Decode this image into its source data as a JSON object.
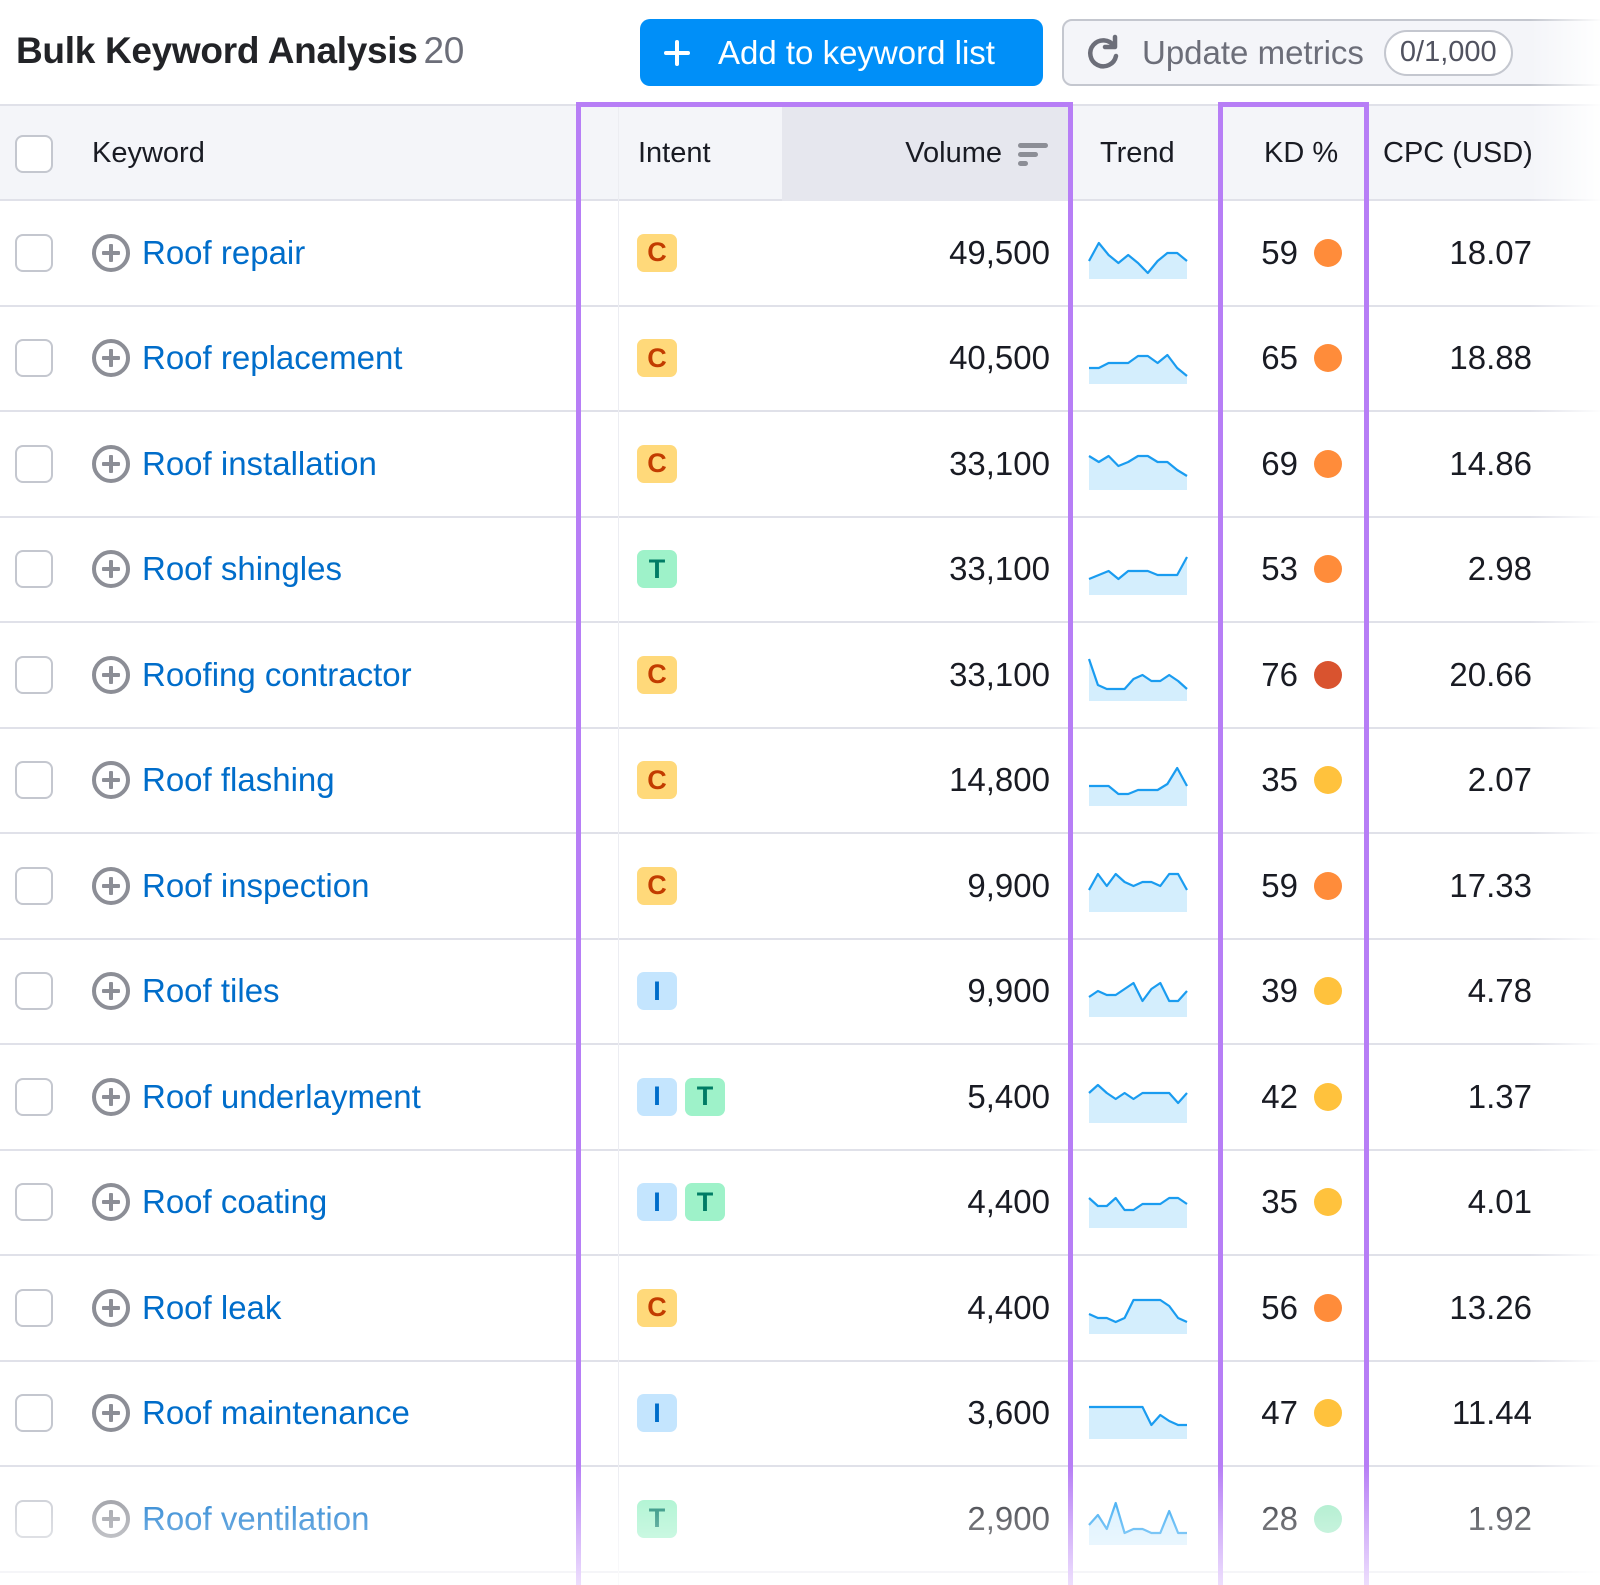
{
  "header": {
    "title": "Bulk Keyword Analysis",
    "count": "20",
    "add_button": "Add to keyword list",
    "update_button": "Update metrics",
    "update_quota": "0/1,000"
  },
  "colors": {
    "accent": "#008ff8",
    "link": "#006dca",
    "highlight_border": "#b77ef6",
    "sparkline_line": "#1a9cf0",
    "sparkline_fill": "#d4eefd",
    "kd_very_hard": "#d9532f",
    "kd_hard": "#ff8c3a",
    "kd_possible": "#ffc23d",
    "kd_easy": "#9eeac4"
  },
  "table": {
    "columns": {
      "keyword": "Keyword",
      "intent": "Intent",
      "volume": "Volume",
      "trend": "Trend",
      "kd": "KD %",
      "cpc": "CPC (USD)"
    },
    "rows": [
      {
        "keyword": "Roof repair",
        "intent": [
          "C"
        ],
        "volume": "49,500",
        "trend": [
          28,
          10,
          22,
          30,
          22,
          30,
          40,
          28,
          20,
          20,
          28
        ],
        "kd": "59",
        "kd_color": "#ff8c3a",
        "cpc": "18.07"
      },
      {
        "keyword": "Roof replacement",
        "intent": [
          "C"
        ],
        "volume": "40,500",
        "trend": [
          30,
          30,
          25,
          25,
          25,
          18,
          18,
          25,
          17,
          30,
          38
        ],
        "kd": "65",
        "kd_color": "#ff8c3a",
        "cpc": "18.88"
      },
      {
        "keyword": "Roof installation",
        "intent": [
          "C"
        ],
        "volume": "33,100",
        "trend": [
          12,
          18,
          12,
          22,
          18,
          12,
          12,
          18,
          18,
          26,
          32
        ],
        "kd": "69",
        "kd_color": "#ff8c3a",
        "cpc": "14.86"
      },
      {
        "keyword": "Roof shingles",
        "intent": [
          "T"
        ],
        "volume": "33,100",
        "trend": [
          30,
          26,
          22,
          30,
          22,
          22,
          22,
          26,
          26,
          26,
          8
        ],
        "kd": "53",
        "kd_color": "#ff8c3a",
        "cpc": "2.98"
      },
      {
        "keyword": "Roofing contractor",
        "intent": [
          "C"
        ],
        "volume": "33,100",
        "trend": [
          4,
          30,
          34,
          34,
          34,
          24,
          20,
          26,
          26,
          20,
          26,
          34
        ],
        "kd": "76",
        "kd_color": "#d9532f",
        "cpc": "20.66"
      },
      {
        "keyword": "Roof flashing",
        "intent": [
          "C"
        ],
        "volume": "14,800",
        "trend": [
          26,
          26,
          26,
          34,
          34,
          30,
          30,
          30,
          24,
          8,
          26
        ],
        "kd": "35",
        "kd_color": "#ffc23d",
        "cpc": "2.07"
      },
      {
        "keyword": "Roof inspection",
        "intent": [
          "C"
        ],
        "volume": "9,900",
        "trend": [
          24,
          8,
          20,
          8,
          16,
          20,
          16,
          16,
          20,
          8,
          8,
          24
        ],
        "kd": "59",
        "kd_color": "#ff8c3a",
        "cpc": "17.33"
      },
      {
        "keyword": "Roof tiles",
        "intent": [
          "I"
        ],
        "volume": "9,900",
        "trend": [
          26,
          20,
          24,
          24,
          18,
          12,
          30,
          18,
          12,
          30,
          30,
          20
        ],
        "kd": "39",
        "kd_color": "#ffc23d",
        "cpc": "4.78"
      },
      {
        "keyword": "Roof underlayment",
        "intent": [
          "I",
          "T"
        ],
        "volume": "5,400",
        "trend": [
          16,
          8,
          16,
          22,
          16,
          22,
          16,
          16,
          16,
          16,
          26,
          16
        ],
        "kd": "42",
        "kd_color": "#ffc23d",
        "cpc": "1.37"
      },
      {
        "keyword": "Roof coating",
        "intent": [
          "I",
          "T"
        ],
        "volume": "4,400",
        "trend": [
          16,
          24,
          24,
          16,
          28,
          28,
          22,
          22,
          22,
          16,
          16,
          22
        ],
        "kd": "35",
        "kd_color": "#ffc23d",
        "cpc": "4.01"
      },
      {
        "keyword": "Roof leak",
        "intent": [
          "C"
        ],
        "volume": "4,400",
        "trend": [
          26,
          30,
          30,
          34,
          30,
          12,
          12,
          12,
          12,
          18,
          30,
          34
        ],
        "kd": "56",
        "kd_color": "#ff8c3a",
        "cpc": "13.26"
      },
      {
        "keyword": "Roof maintenance",
        "intent": [
          "I"
        ],
        "volume": "3,600",
        "trend": [
          14,
          14,
          14,
          14,
          14,
          14,
          14,
          32,
          22,
          28,
          32,
          32
        ],
        "kd": "47",
        "kd_color": "#ffc23d",
        "cpc": "11.44"
      },
      {
        "keyword": "Roof ventilation",
        "intent": [
          "T"
        ],
        "volume": "2,900",
        "trend": [
          26,
          16,
          30,
          4,
          34,
          30,
          30,
          34,
          34,
          12,
          34,
          34
        ],
        "kd": "28",
        "kd_color": "#9eeac4",
        "cpc": "1.92"
      }
    ]
  }
}
